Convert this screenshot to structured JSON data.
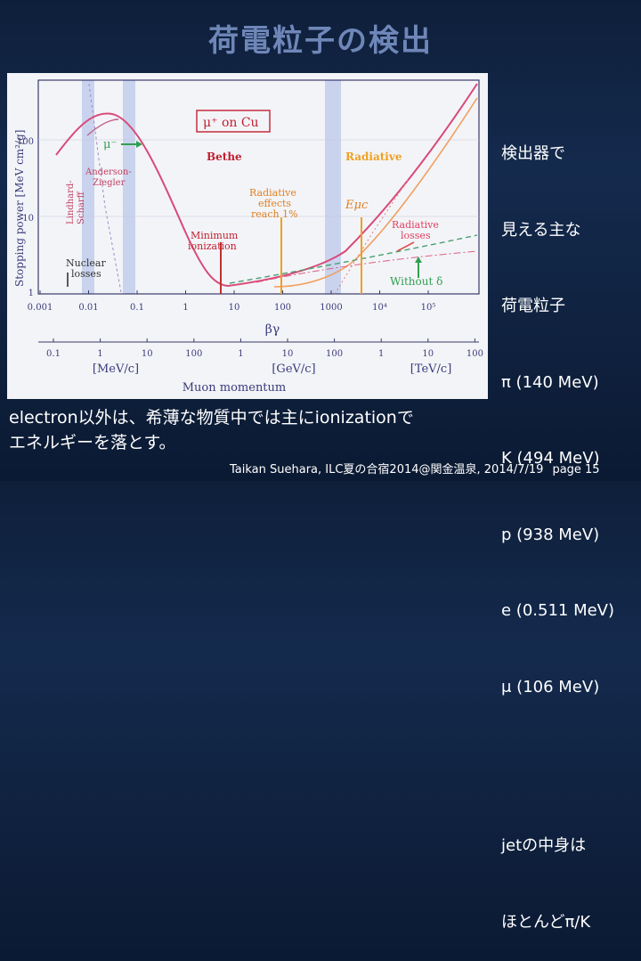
{
  "slide": {
    "title": "荷電粒子の検出",
    "right_lines": [
      "検出器で",
      "見える主な",
      "荷電粒子",
      "π (140 MeV)",
      "K (494 MeV)",
      "p (938 MeV)",
      "e (0.511 MeV)",
      "μ (106 MeV)"
    ],
    "jet_lines": [
      "jetの中身は",
      "ほとんどπ/K"
    ],
    "bottom_lines": [
      "electron以外は、希薄な物質中では主にionizationで",
      "エネルギーを落とす。"
    ],
    "footer": "Taikan Suehara, ILC夏の合宿2014@関金温泉, 2014/7/19",
    "page": "page 15"
  },
  "figure": {
    "box_label": "μ⁺ on Cu",
    "mu_minus": "μ⁻",
    "anderson": [
      "Anderson-",
      "Ziegler"
    ],
    "lindhard": [
      "Lindhard-",
      "Scharff"
    ],
    "bethe": "Bethe",
    "radiative": "Radiative",
    "rad_effects": [
      "Radiative",
      "effects",
      "reach 1%"
    ],
    "emuc": "Eμc",
    "rad_losses": [
      "Radiative",
      "losses"
    ],
    "min_ion": [
      "Minimum",
      "ionization"
    ],
    "nuclear": [
      "Nuclear",
      "losses"
    ],
    "without": "Without δ",
    "ylabel": "Stopping power [MeV cm²/g]",
    "y_ticks": [
      "100",
      "10",
      "1"
    ],
    "bg_ticks": [
      "0.001",
      "0.01",
      "0.1",
      "1",
      "10",
      "100",
      "1000",
      "10⁴",
      "10⁵"
    ],
    "bg_label": "βγ",
    "mom_ticks": [
      "0.1",
      "1",
      "10",
      "100",
      "1",
      "10",
      "100",
      "1",
      "10",
      "100"
    ],
    "unit_labels": [
      "[MeV/c]",
      "[GeV/c]",
      "[TeV/c]"
    ],
    "mom_label": "Muon momentum"
  }
}
